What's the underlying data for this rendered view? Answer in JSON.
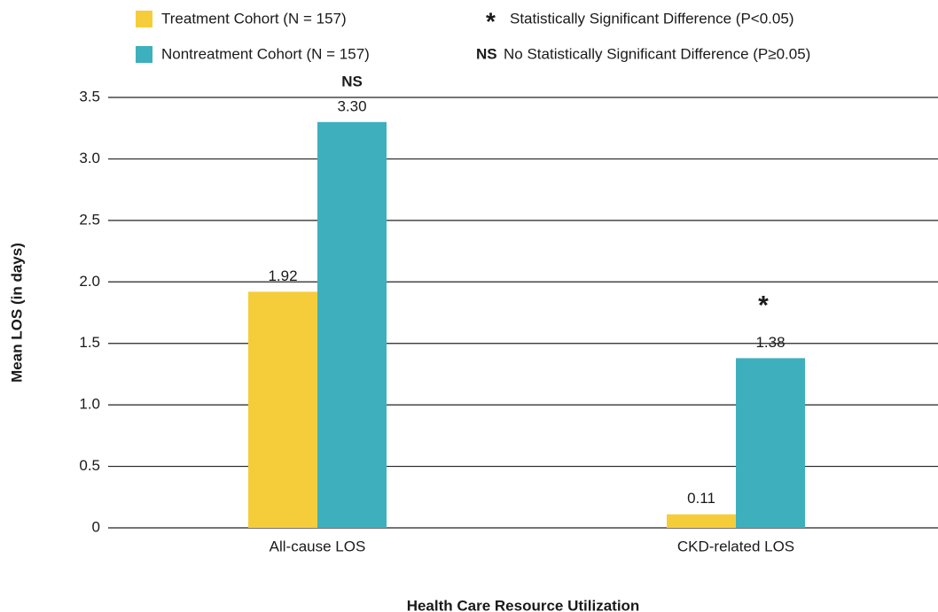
{
  "chart_data": {
    "type": "bar",
    "y_label": "Mean LOS (in days)",
    "x_label": "Health Care Resource Utilization",
    "categories": [
      "All-cause LOS",
      "CKD-related LOS"
    ],
    "series": [
      {
        "name": "Treatment Cohort (N = 157)",
        "color": "#f5cd3a",
        "values": [
          1.92,
          0.11
        ],
        "value_labels": [
          "1.92",
          "0.11"
        ]
      },
      {
        "name": "Nontreatment Cohort (N = 157)",
        "color": "#3eb0bd",
        "values": [
          3.3,
          1.38
        ],
        "value_labels": [
          "3.30",
          "1.38"
        ]
      }
    ],
    "significance": [
      "NS",
      "*"
    ],
    "legend_notes": [
      {
        "symbol": "*",
        "text": "Statistically Significant Difference (P<0.05)"
      },
      {
        "symbol": "NS",
        "text": "No Statistically Significant Difference (P≥0.05)"
      }
    ],
    "ylim": [
      0,
      3.5
    ],
    "yticks": [
      0,
      0.5,
      {
        "value": 1,
        "label": "1.0"
      },
      1.5,
      {
        "value": 2,
        "label": "2.0"
      },
      2.5,
      {
        "value": 3,
        "label": "3.0"
      },
      3.5
    ],
    "grid": true,
    "legend": "top"
  }
}
